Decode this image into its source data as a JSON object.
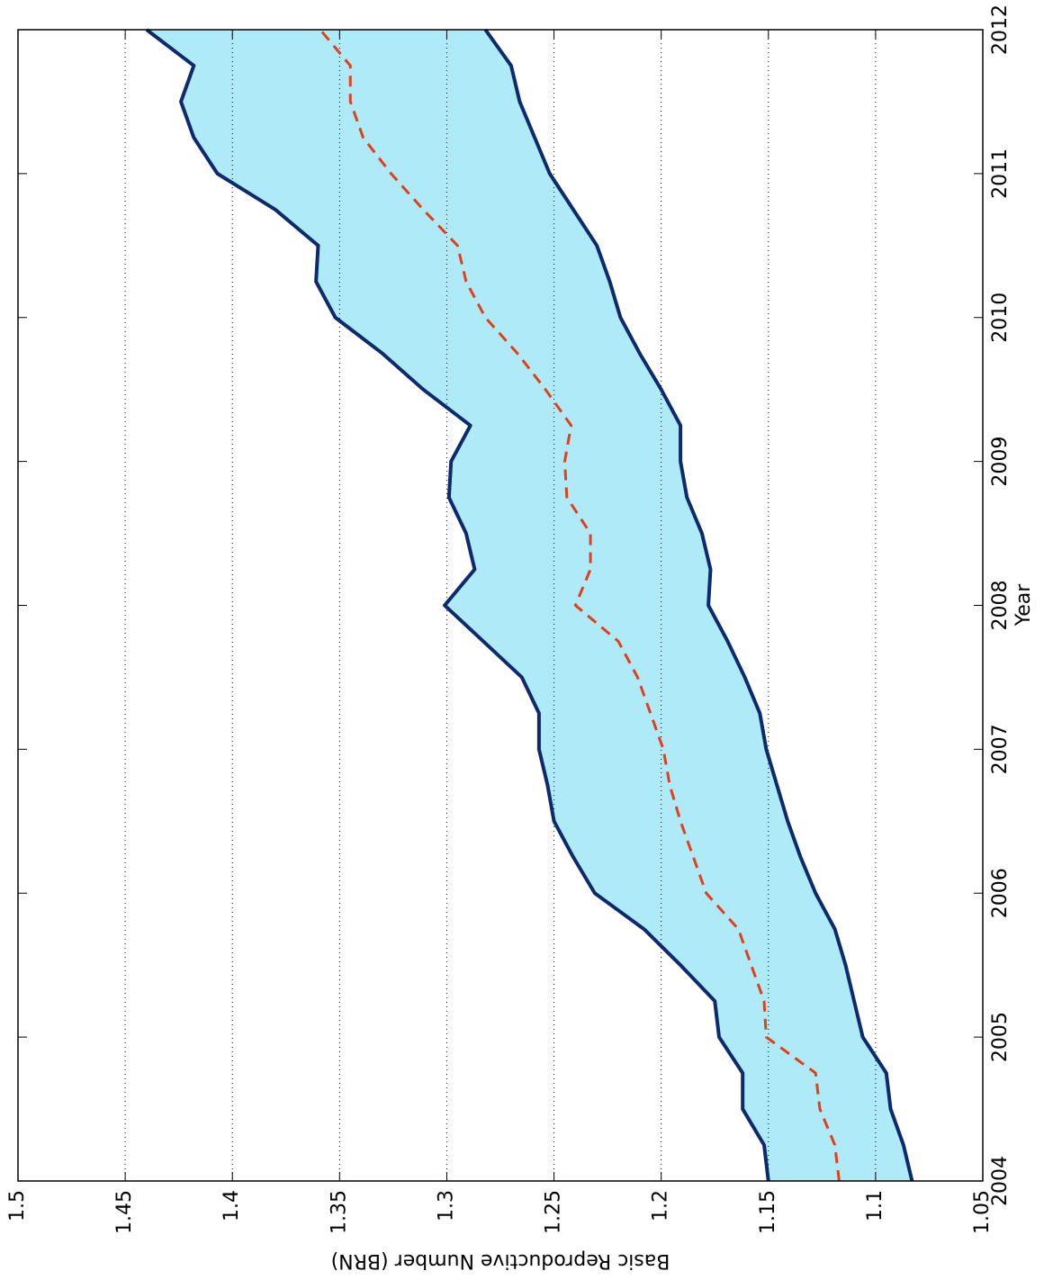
{
  "chart_data": {
    "type": "line",
    "x_label": "Year",
    "y_label": "Basic Reproductive Number (BRN)",
    "x": [
      2004,
      2004.25,
      2004.5,
      2004.75,
      2005,
      2005.25,
      2005.5,
      2005.75,
      2006,
      2006.25,
      2006.5,
      2006.75,
      2007,
      2007.25,
      2007.5,
      2007.75,
      2008,
      2008.25,
      2008.5,
      2008.75,
      2009,
      2009.25,
      2009.5,
      2009.75,
      2010,
      2010.25,
      2010.5,
      2010.75,
      2011,
      2011.25,
      2011.5,
      2011.75,
      2012
    ],
    "series": [
      {
        "color": "#0d2a6b",
        "dash": false,
        "values": [
          1.15,
          1.152,
          1.162,
          1.162,
          1.173,
          1.175,
          1.191,
          1.208,
          1.231,
          1.241,
          1.25,
          1.253,
          1.257,
          1.257,
          1.265,
          1.283,
          1.301,
          1.287,
          1.291,
          1.299,
          1.298,
          1.289,
          1.311,
          1.33,
          1.352,
          1.361,
          1.36,
          1.38,
          1.407,
          1.418,
          1.424,
          1.418,
          1.44
        ]
      },
      {
        "color": "#0d2a6b",
        "dash": false,
        "values": [
          1.083,
          1.087,
          1.093,
          1.095,
          1.106,
          1.11,
          1.114,
          1.119,
          1.128,
          1.135,
          1.141,
          1.146,
          1.151,
          1.154,
          1.161,
          1.169,
          1.178,
          1.177,
          1.181,
          1.188,
          1.191,
          1.191,
          1.2,
          1.21,
          1.219,
          1.224,
          1.23,
          1.241,
          1.252,
          1.259,
          1.266,
          1.27,
          1.282
        ]
      },
      {
        "color": "#e0401a",
        "dash": true,
        "values": [
          1.117,
          1.119,
          1.126,
          1.128,
          1.151,
          1.152,
          1.158,
          1.164,
          1.179,
          1.185,
          1.191,
          1.196,
          1.199,
          1.205,
          1.211,
          1.22,
          1.24,
          1.233,
          1.233,
          1.244,
          1.245,
          1.242,
          1.254,
          1.267,
          1.282,
          1.291,
          1.295,
          1.311,
          1.326,
          1.339,
          1.345,
          1.345,
          1.359
        ]
      }
    ],
    "band_color": "#aeeaf8",
    "xlim": [
      2004,
      2012
    ],
    "xticks": [
      2004,
      2005,
      2006,
      2007,
      2008,
      2009,
      2010,
      2011,
      2012
    ],
    "ylim": [
      1.05,
      1.5
    ],
    "yticks": [
      1.05,
      1.1,
      1.15,
      1.2,
      1.25,
      1.3,
      1.35,
      1.4,
      1.45,
      1.5
    ],
    "grid": true
  }
}
